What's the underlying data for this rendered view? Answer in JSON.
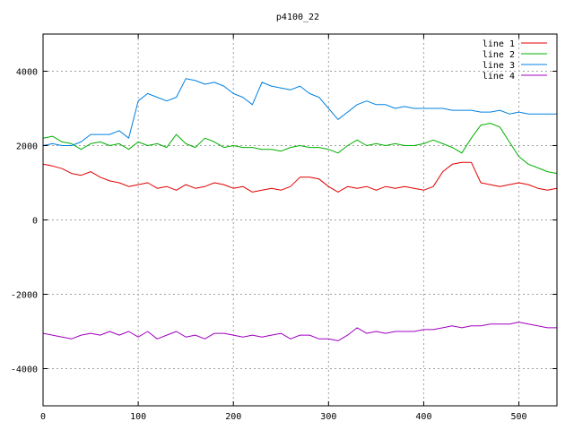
{
  "chart_data": {
    "type": "line",
    "title": "p4100_22",
    "xlabel": "",
    "ylabel": "",
    "xlim": [
      0,
      540
    ],
    "ylim": [
      -5000,
      5000
    ],
    "x_ticks": [
      0,
      100,
      200,
      300,
      400,
      500
    ],
    "y_ticks": [
      -4000,
      -2000,
      0,
      2000,
      4000
    ],
    "grid": true,
    "legend_position": "top-right",
    "series": [
      {
        "name": "line 1",
        "color": "#e00000",
        "points": [
          [
            0,
            1500
          ],
          [
            10,
            1450
          ],
          [
            20,
            1380
          ],
          [
            30,
            1250
          ],
          [
            40,
            1200
          ],
          [
            50,
            1300
          ],
          [
            60,
            1150
          ],
          [
            70,
            1050
          ],
          [
            80,
            1000
          ],
          [
            90,
            900
          ],
          [
            100,
            950
          ],
          [
            110,
            1000
          ],
          [
            120,
            850
          ],
          [
            130,
            900
          ],
          [
            140,
            800
          ],
          [
            150,
            950
          ],
          [
            160,
            850
          ],
          [
            170,
            900
          ],
          [
            180,
            1000
          ],
          [
            190,
            950
          ],
          [
            200,
            850
          ],
          [
            210,
            900
          ],
          [
            220,
            750
          ],
          [
            230,
            800
          ],
          [
            240,
            850
          ],
          [
            250,
            800
          ],
          [
            260,
            900
          ],
          [
            270,
            1150
          ],
          [
            280,
            1150
          ],
          [
            290,
            1100
          ],
          [
            300,
            900
          ],
          [
            310,
            750
          ],
          [
            320,
            900
          ],
          [
            330,
            850
          ],
          [
            340,
            900
          ],
          [
            350,
            800
          ],
          [
            360,
            900
          ],
          [
            370,
            850
          ],
          [
            380,
            900
          ],
          [
            390,
            850
          ],
          [
            400,
            800
          ],
          [
            410,
            900
          ],
          [
            420,
            1300
          ],
          [
            430,
            1500
          ],
          [
            440,
            1550
          ],
          [
            450,
            1550
          ],
          [
            460,
            1000
          ],
          [
            470,
            950
          ],
          [
            480,
            900
          ],
          [
            490,
            950
          ],
          [
            500,
            1000
          ],
          [
            510,
            950
          ],
          [
            520,
            850
          ],
          [
            530,
            800
          ],
          [
            540,
            850
          ]
        ]
      },
      {
        "name": "line 2",
        "color": "#00b000",
        "points": [
          [
            0,
            2200
          ],
          [
            10,
            2250
          ],
          [
            20,
            2100
          ],
          [
            30,
            2050
          ],
          [
            40,
            1900
          ],
          [
            50,
            2050
          ],
          [
            60,
            2100
          ],
          [
            70,
            2000
          ],
          [
            80,
            2050
          ],
          [
            90,
            1900
          ],
          [
            100,
            2100
          ],
          [
            110,
            2000
          ],
          [
            120,
            2050
          ],
          [
            130,
            1950
          ],
          [
            140,
            2300
          ],
          [
            150,
            2050
          ],
          [
            160,
            1950
          ],
          [
            170,
            2200
          ],
          [
            180,
            2100
          ],
          [
            190,
            1950
          ],
          [
            200,
            2000
          ],
          [
            210,
            1950
          ],
          [
            220,
            1950
          ],
          [
            230,
            1900
          ],
          [
            240,
            1900
          ],
          [
            250,
            1850
          ],
          [
            260,
            1950
          ],
          [
            270,
            2000
          ],
          [
            280,
            1950
          ],
          [
            290,
            1950
          ],
          [
            300,
            1900
          ],
          [
            310,
            1800
          ],
          [
            320,
            2000
          ],
          [
            330,
            2150
          ],
          [
            340,
            2000
          ],
          [
            350,
            2050
          ],
          [
            360,
            2000
          ],
          [
            370,
            2050
          ],
          [
            380,
            2000
          ],
          [
            390,
            2000
          ],
          [
            400,
            2050
          ],
          [
            410,
            2150
          ],
          [
            420,
            2050
          ],
          [
            430,
            1950
          ],
          [
            440,
            1800
          ],
          [
            450,
            2200
          ],
          [
            460,
            2550
          ],
          [
            470,
            2600
          ],
          [
            480,
            2500
          ],
          [
            490,
            2100
          ],
          [
            500,
            1700
          ],
          [
            510,
            1500
          ],
          [
            520,
            1400
          ],
          [
            530,
            1300
          ],
          [
            540,
            1250
          ]
        ]
      },
      {
        "name": "line 3",
        "color": "#0080e0",
        "points": [
          [
            0,
            2000
          ],
          [
            10,
            2050
          ],
          [
            20,
            2000
          ],
          [
            30,
            2000
          ],
          [
            40,
            2100
          ],
          [
            50,
            2300
          ],
          [
            60,
            2300
          ],
          [
            70,
            2300
          ],
          [
            80,
            2400
          ],
          [
            90,
            2200
          ],
          [
            100,
            3200
          ],
          [
            110,
            3400
          ],
          [
            120,
            3300
          ],
          [
            130,
            3200
          ],
          [
            140,
            3300
          ],
          [
            150,
            3800
          ],
          [
            160,
            3750
          ],
          [
            170,
            3650
          ],
          [
            180,
            3700
          ],
          [
            190,
            3600
          ],
          [
            200,
            3400
          ],
          [
            210,
            3300
          ],
          [
            220,
            3100
          ],
          [
            230,
            3700
          ],
          [
            240,
            3600
          ],
          [
            250,
            3550
          ],
          [
            260,
            3500
          ],
          [
            270,
            3600
          ],
          [
            280,
            3400
          ],
          [
            290,
            3300
          ],
          [
            300,
            3000
          ],
          [
            310,
            2700
          ],
          [
            320,
            2900
          ],
          [
            330,
            3100
          ],
          [
            340,
            3200
          ],
          [
            350,
            3100
          ],
          [
            360,
            3100
          ],
          [
            370,
            3000
          ],
          [
            380,
            3050
          ],
          [
            390,
            3000
          ],
          [
            400,
            3000
          ],
          [
            410,
            3000
          ],
          [
            420,
            3000
          ],
          [
            430,
            2950
          ],
          [
            440,
            2950
          ],
          [
            450,
            2950
          ],
          [
            460,
            2900
          ],
          [
            470,
            2900
          ],
          [
            480,
            2950
          ],
          [
            490,
            2850
          ],
          [
            500,
            2900
          ],
          [
            510,
            2850
          ],
          [
            520,
            2850
          ],
          [
            530,
            2850
          ],
          [
            540,
            2850
          ]
        ]
      },
      {
        "name": "line 4",
        "color": "#a000c0",
        "points": [
          [
            0,
            -3050
          ],
          [
            10,
            -3100
          ],
          [
            20,
            -3150
          ],
          [
            30,
            -3200
          ],
          [
            40,
            -3100
          ],
          [
            50,
            -3050
          ],
          [
            60,
            -3100
          ],
          [
            70,
            -3000
          ],
          [
            80,
            -3100
          ],
          [
            90,
            -3000
          ],
          [
            100,
            -3150
          ],
          [
            110,
            -3000
          ],
          [
            120,
            -3200
          ],
          [
            130,
            -3100
          ],
          [
            140,
            -3000
          ],
          [
            150,
            -3150
          ],
          [
            160,
            -3100
          ],
          [
            170,
            -3200
          ],
          [
            180,
            -3050
          ],
          [
            190,
            -3050
          ],
          [
            200,
            -3100
          ],
          [
            210,
            -3150
          ],
          [
            220,
            -3100
          ],
          [
            230,
            -3150
          ],
          [
            240,
            -3100
          ],
          [
            250,
            -3050
          ],
          [
            260,
            -3200
          ],
          [
            270,
            -3100
          ],
          [
            280,
            -3100
          ],
          [
            290,
            -3200
          ],
          [
            300,
            -3200
          ],
          [
            310,
            -3250
          ],
          [
            320,
            -3100
          ],
          [
            330,
            -2900
          ],
          [
            340,
            -3050
          ],
          [
            350,
            -3000
          ],
          [
            360,
            -3050
          ],
          [
            370,
            -3000
          ],
          [
            380,
            -3000
          ],
          [
            390,
            -3000
          ],
          [
            400,
            -2950
          ],
          [
            410,
            -2950
          ],
          [
            420,
            -2900
          ],
          [
            430,
            -2850
          ],
          [
            440,
            -2900
          ],
          [
            450,
            -2850
          ],
          [
            460,
            -2850
          ],
          [
            470,
            -2800
          ],
          [
            480,
            -2800
          ],
          [
            490,
            -2800
          ],
          [
            500,
            -2750
          ],
          [
            510,
            -2800
          ],
          [
            520,
            -2850
          ],
          [
            530,
            -2900
          ],
          [
            540,
            -2900
          ]
        ]
      }
    ]
  }
}
